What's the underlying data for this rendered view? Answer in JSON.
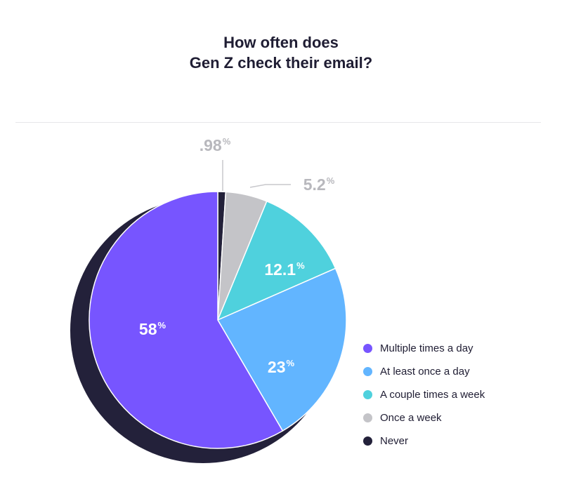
{
  "chart_data": {
    "type": "pie",
    "title_lines": [
      "How often does",
      "Gen Z check their email?"
    ],
    "slices": [
      {
        "name": "Multiple times a day",
        "value": 58,
        "label": "58",
        "color": "#7755ff"
      },
      {
        "name": "At least once a day",
        "value": 23,
        "label": "23",
        "color": "#62b5ff"
      },
      {
        "name": "A couple times a week",
        "value": 12.1,
        "label": "12.1",
        "color": "#4fd1dd"
      },
      {
        "name": "Once a week",
        "value": 5.2,
        "label": "5.2",
        "color": "#c4c4c8"
      },
      {
        "name": "Never",
        "value": 0.98,
        "label": ".98",
        "color": "#23213a"
      }
    ],
    "slice_order_clockwise_from_top": [
      "Never",
      "Once a week",
      "A couple times a week",
      "At least once a day",
      "Multiple times a day"
    ],
    "percent_symbol": "%",
    "legend_placement": "bottom-right"
  }
}
